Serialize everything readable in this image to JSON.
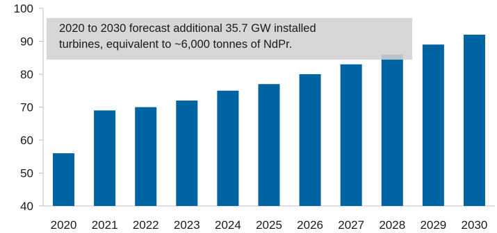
{
  "chart_data": {
    "type": "bar",
    "categories": [
      "2020",
      "2021",
      "2022",
      "2023",
      "2024",
      "2025",
      "2026",
      "2027",
      "2028",
      "2029",
      "2030"
    ],
    "values": [
      56,
      69,
      70,
      72,
      75,
      77,
      80,
      83,
      86,
      89,
      92
    ],
    "ylim": [
      40,
      100
    ],
    "yticks": [
      40,
      50,
      60,
      70,
      80,
      90,
      100
    ],
    "bar_color": "#0064A3",
    "grid": false,
    "annotation": {
      "line1": "2020 to 2030 forecast additional 35.7 GW installed",
      "line2": "turbines, equivalent to ~6,000 tonnes of NdPr."
    }
  }
}
